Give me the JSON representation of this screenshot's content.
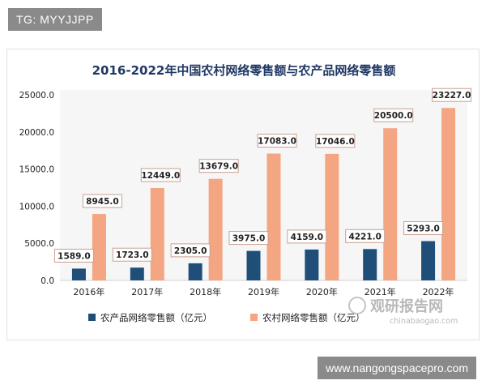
{
  "header_tag": "TG: MYYJJPP",
  "footer_tag": "www.nangongspacepro.com",
  "watermark": {
    "name": "观研报告网",
    "domain": "chinabaogao.com"
  },
  "colors": {
    "series1": "#1f4e79",
    "series2": "#f4a582",
    "label_border": "#c9a090"
  },
  "chart_data": {
    "type": "bar",
    "title": "2016-2022年中国农村网络零售额与农产品网络零售额",
    "categories": [
      "2016年",
      "2017年",
      "2018年",
      "2019年",
      "2020年",
      "2021年",
      "2022年"
    ],
    "series": [
      {
        "name": "农产品网络零售额（亿元）",
        "values": [
          1589.0,
          1723.0,
          2305.0,
          3975.0,
          4159.0,
          4221.0,
          5293.0
        ]
      },
      {
        "name": "农村网络零售额（亿元）",
        "values": [
          8945.0,
          12449.0,
          13679.0,
          17083.0,
          17046.0,
          20500.0,
          23227.0
        ]
      }
    ],
    "ylim": [
      0,
      25000
    ],
    "yticks": [
      "0.0",
      "5000.0",
      "10000.0",
      "15000.0",
      "20000.0",
      "25000.0"
    ],
    "xlabel": "",
    "ylabel": "",
    "legend_position": "bottom-left",
    "grid": false
  }
}
